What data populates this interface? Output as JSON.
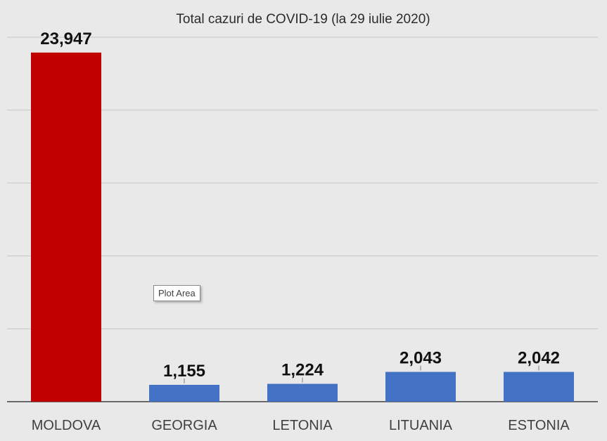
{
  "chart_data": {
    "type": "bar",
    "title": "Total cazuri de COVID-19 (la 29 iulie 2020)",
    "categories": [
      "MOLDOVA",
      "GEORGIA",
      "LETONIA",
      "LITUANIA",
      "ESTONIA"
    ],
    "values": [
      23947,
      1155,
      1224,
      2043,
      2042
    ],
    "value_labels": [
      "23,947",
      "1,155",
      "1,224",
      "2,043",
      "2,042"
    ],
    "bar_colors": [
      "#c00000",
      "#4472c4",
      "#4472c4",
      "#4472c4",
      "#4472c4"
    ],
    "ylim": [
      0,
      25000
    ],
    "ytick_step": 5000,
    "grid": true,
    "legend": "none"
  },
  "tooltip": {
    "label": "Plot Area"
  },
  "colors": {
    "background": "#e9e9e9",
    "gridline": "#c6c6c6",
    "axis": "#404040"
  }
}
